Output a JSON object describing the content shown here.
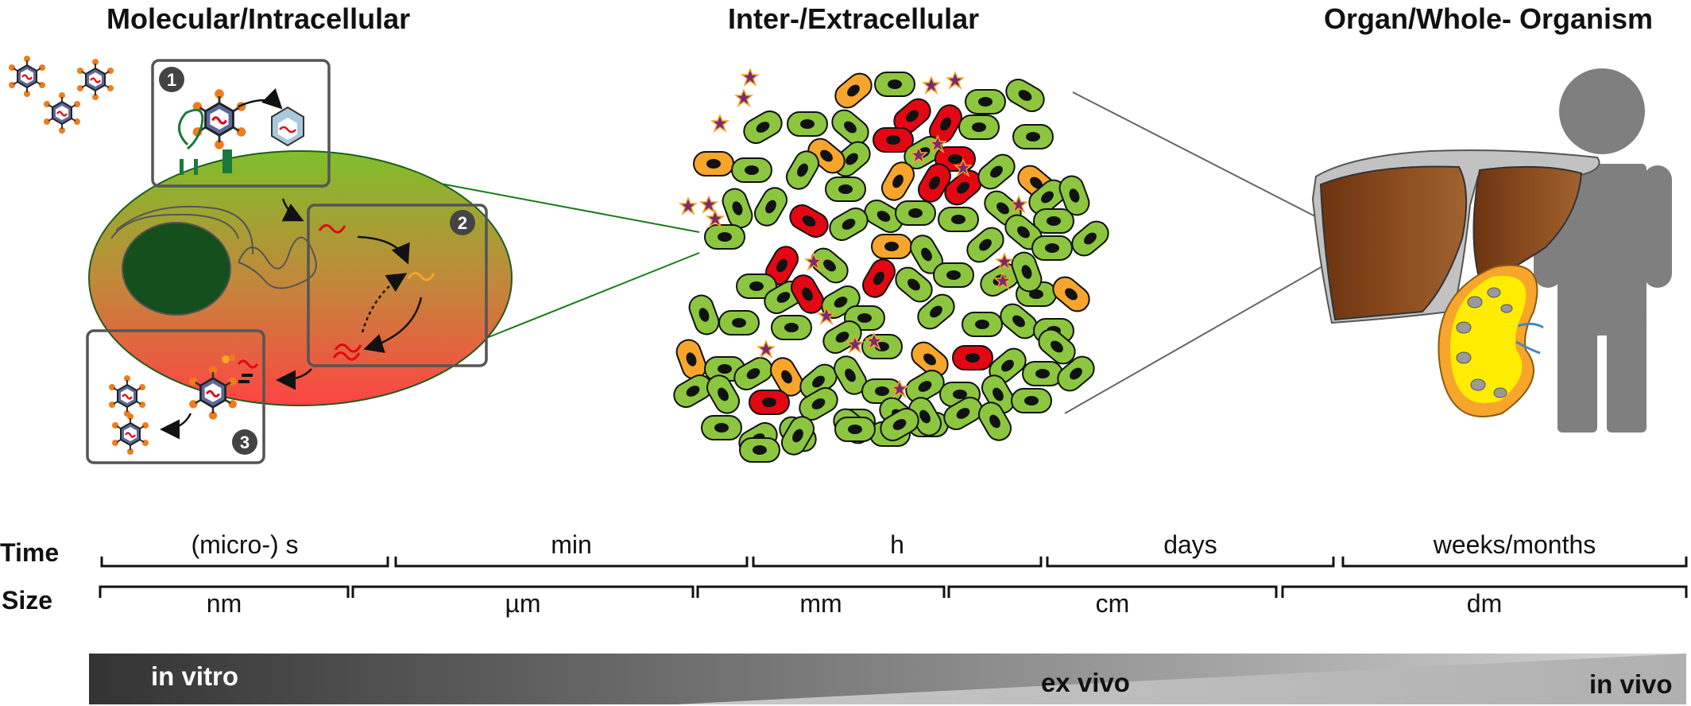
{
  "titles": {
    "molecular": "Molecular/Intracellular",
    "inter": "Inter-/Extracellular",
    "organ": "Organ/Whole- Organism"
  },
  "badges": [
    "1",
    "2",
    "3"
  ],
  "scales": {
    "time_label": "Time",
    "size_label": "Size",
    "time": [
      "(micro-) s",
      "min",
      "h",
      "days",
      "weeks/months"
    ],
    "size": [
      "nm",
      "µm",
      "mm",
      "cm",
      "dm"
    ]
  },
  "gradient": {
    "in_vitro": "in vitro",
    "ex_vivo": "ex vivo",
    "in_vivo": "in vivo"
  },
  "colors": {
    "cell_green": "#8cc63f",
    "cell_orange": "#f7a52b",
    "cell_red": "#e30613",
    "liver": "#7b3f16",
    "human": "#7f7f7f",
    "kidney": "#ffec00",
    "box_border": "#555555"
  }
}
